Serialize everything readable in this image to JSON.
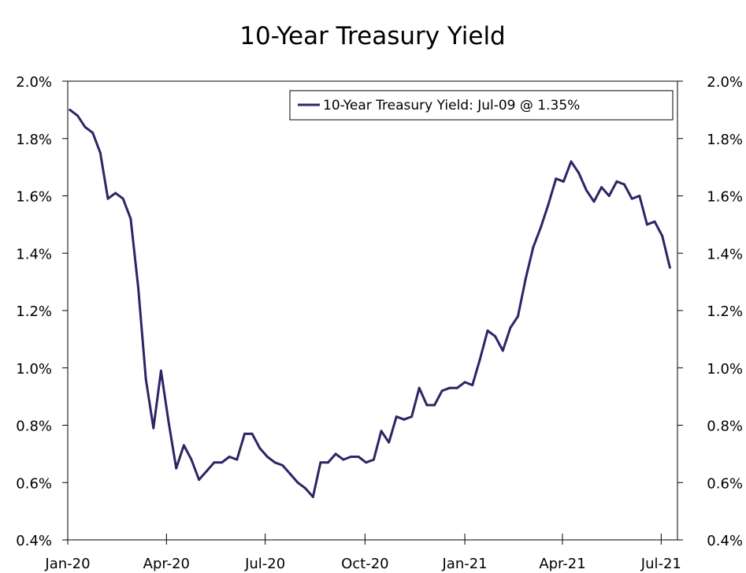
{
  "chart_data": {
    "type": "line",
    "title": "10-Year Treasury Yield",
    "legend": "10-Year Treasury Yield: Jul-09 @ 1.35%",
    "legend_position": "top-right",
    "grid": false,
    "x_tick_labels": [
      "Jan-20",
      "Apr-20",
      "Jul-20",
      "Oct-20",
      "Jan-21",
      "Apr-21",
      "Jul-21"
    ],
    "y_tick_labels": [
      "0.4%",
      "0.6%",
      "0.8%",
      "1.0%",
      "1.2%",
      "1.4%",
      "1.6%",
      "1.8%",
      "2.0%"
    ],
    "ylim": [
      0.4,
      2.0
    ],
    "xlim": [
      "2020-01-01",
      "2021-07-16"
    ],
    "series": [
      {
        "name": "10-Year Treasury Yield",
        "color": "#2e2466",
        "x": [
          "2020-01-03",
          "2020-01-10",
          "2020-01-17",
          "2020-01-24",
          "2020-01-31",
          "2020-02-07",
          "2020-02-14",
          "2020-02-21",
          "2020-02-28",
          "2020-03-06",
          "2020-03-13",
          "2020-03-20",
          "2020-03-27",
          "2020-04-03",
          "2020-04-10",
          "2020-04-17",
          "2020-04-24",
          "2020-05-01",
          "2020-05-08",
          "2020-05-15",
          "2020-05-22",
          "2020-05-29",
          "2020-06-05",
          "2020-06-12",
          "2020-06-19",
          "2020-06-26",
          "2020-07-03",
          "2020-07-10",
          "2020-07-17",
          "2020-07-24",
          "2020-07-31",
          "2020-08-07",
          "2020-08-14",
          "2020-08-21",
          "2020-08-28",
          "2020-09-04",
          "2020-09-11",
          "2020-09-18",
          "2020-09-25",
          "2020-10-02",
          "2020-10-09",
          "2020-10-16",
          "2020-10-23",
          "2020-10-30",
          "2020-11-06",
          "2020-11-13",
          "2020-11-20",
          "2020-11-27",
          "2020-12-04",
          "2020-12-11",
          "2020-12-18",
          "2020-12-25",
          "2021-01-01",
          "2021-01-08",
          "2021-01-15",
          "2021-01-22",
          "2021-01-29",
          "2021-02-05",
          "2021-02-12",
          "2021-02-19",
          "2021-02-26",
          "2021-03-05",
          "2021-03-12",
          "2021-03-19",
          "2021-03-26",
          "2021-04-02",
          "2021-04-09",
          "2021-04-16",
          "2021-04-23",
          "2021-04-30",
          "2021-05-07",
          "2021-05-14",
          "2021-05-21",
          "2021-05-28",
          "2021-06-04",
          "2021-06-11",
          "2021-06-18",
          "2021-06-25",
          "2021-07-02",
          "2021-07-09"
        ],
        "values": [
          1.9,
          1.88,
          1.84,
          1.82,
          1.75,
          1.59,
          1.61,
          1.59,
          1.52,
          1.28,
          0.96,
          0.79,
          0.99,
          0.81,
          0.65,
          0.73,
          0.68,
          0.61,
          0.64,
          0.67,
          0.67,
          0.69,
          0.68,
          0.77,
          0.77,
          0.72,
          0.69,
          0.67,
          0.66,
          0.63,
          0.6,
          0.58,
          0.55,
          0.67,
          0.67,
          0.7,
          0.68,
          0.69,
          0.69,
          0.67,
          0.68,
          0.78,
          0.74,
          0.83,
          0.82,
          0.83,
          0.93,
          0.87,
          0.87,
          0.92,
          0.93,
          0.93,
          0.95,
          0.94,
          1.03,
          1.13,
          1.11,
          1.06,
          1.14,
          1.18,
          1.31,
          1.42,
          1.49,
          1.57,
          1.66,
          1.65,
          1.72,
          1.68,
          1.62,
          1.58,
          1.63,
          1.6,
          1.65,
          1.64,
          1.59,
          1.6,
          1.5,
          1.51,
          1.46,
          1.35
        ]
      }
    ]
  }
}
